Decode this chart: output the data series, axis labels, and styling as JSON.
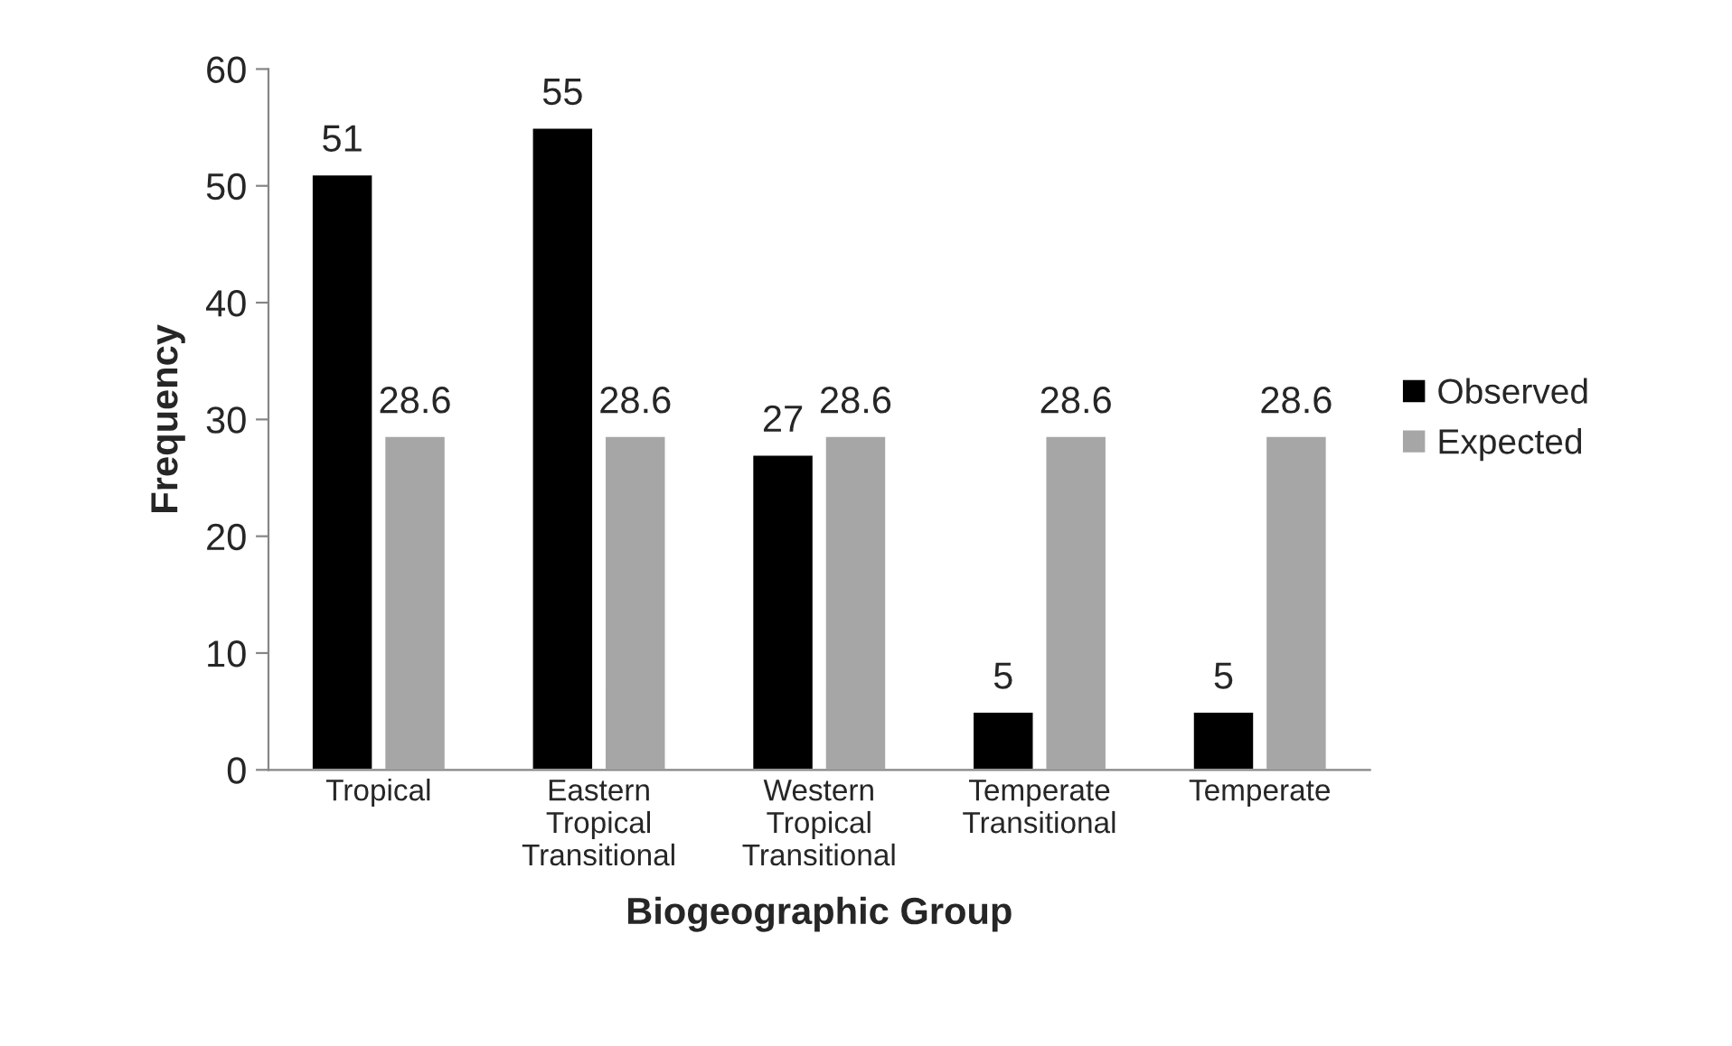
{
  "chart_data": {
    "type": "bar",
    "categories": [
      "Tropical",
      "Eastern\nTropical\nTransitional",
      "Western\nTropical\nTransitional",
      "Temperate\nTransitional",
      "Temperate"
    ],
    "series": [
      {
        "name": "Observed",
        "color": "#000000",
        "values": [
          51,
          55,
          27,
          5,
          5
        ]
      },
      {
        "name": "Expected",
        "color": "#a6a6a6",
        "values": [
          28.6,
          28.6,
          28.6,
          28.6,
          28.6
        ]
      }
    ],
    "xlabel": "Biogeographic Group",
    "ylabel": "Frequency",
    "ylim": [
      0,
      60
    ],
    "yticks": [
      0,
      10,
      20,
      30,
      40,
      50,
      60
    ],
    "data_labels": true,
    "legend": "right",
    "grid": false
  }
}
